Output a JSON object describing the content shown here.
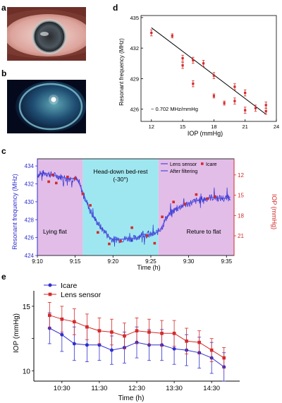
{
  "panels": {
    "a": "a",
    "b": "b",
    "c": "c",
    "d": "d",
    "e": "e"
  },
  "colors": {
    "red": "#d42a2a",
    "blue": "#2f2fd0",
    "black": "#000000",
    "lying_bg": "#e2bde8",
    "bedrest_bg": "#9fe7f0",
    "fit_line": "#000000"
  },
  "chart_data": [
    {
      "id": "d",
      "type": "scatter",
      "xlabel": "IOP (mmHg)",
      "ylabel": "Resonant frequency (MHz)",
      "annotation": "− 0.702 MHz/mmHg",
      "xlim": [
        11,
        24
      ],
      "ylim": [
        424.8,
        435.2
      ],
      "xticks": [
        12,
        15,
        18,
        21,
        24
      ],
      "yticks": [
        426,
        429,
        432,
        435
      ],
      "points": [
        {
          "x": 12,
          "y": 433.5,
          "err": 0.3
        },
        {
          "x": 14,
          "y": 433.2,
          "err": 0.2
        },
        {
          "x": 15,
          "y": 431.0,
          "err": 0.3
        },
        {
          "x": 15,
          "y": 430.3,
          "err": 0.3
        },
        {
          "x": 16,
          "y": 430.8,
          "err": 0.3
        },
        {
          "x": 16,
          "y": 428.5,
          "err": 0.3
        },
        {
          "x": 17,
          "y": 430.5,
          "err": 0.3
        },
        {
          "x": 18,
          "y": 429.3,
          "err": 0.3
        },
        {
          "x": 18,
          "y": 427.3,
          "err": 0.2
        },
        {
          "x": 19,
          "y": 426.6,
          "err": 0.2
        },
        {
          "x": 20,
          "y": 428.2,
          "err": 0.3
        },
        {
          "x": 20,
          "y": 426.8,
          "err": 0.3
        },
        {
          "x": 21,
          "y": 427.6,
          "err": 0.3
        },
        {
          "x": 21,
          "y": 425.9,
          "err": 0.3
        },
        {
          "x": 22,
          "y": 426.1,
          "err": 0.3
        },
        {
          "x": 23,
          "y": 426.4,
          "err": 0.3
        },
        {
          "x": 23,
          "y": 425.8,
          "err": 0.3
        }
      ],
      "fit": {
        "x": [
          12,
          23
        ],
        "y": [
          434.0,
          425.5
        ]
      }
    },
    {
      "id": "c",
      "type": "line",
      "xlabel": "Time (h)",
      "ylabel": "Resonant frequency (MHz)",
      "y2label": "IOP (mmHg)",
      "xlim": [
        9.1667,
        9.6
      ],
      "xticks": [
        9.1667,
        9.25,
        9.3333,
        9.4167,
        9.5,
        9.5833
      ],
      "xticklabels": [
        "9:10",
        "9:15",
        "9:20",
        "9:25",
        "9:30",
        "9:35"
      ],
      "ylim": [
        424,
        434.8
      ],
      "yticks": [
        424,
        426,
        428,
        430,
        432,
        434
      ],
      "y2ticks": [
        12,
        15,
        18,
        21
      ],
      "y2_mapping": {
        "iop_a": 12,
        "freq_a": 433,
        "iop_b": 21,
        "freq_b": 426.2
      },
      "regions": [
        {
          "label": "Lying flat",
          "start": 9.1667,
          "end": 9.2667,
          "kind": "lying"
        },
        {
          "label": "Head-down bed-rest",
          "sublabel": "(-30°)",
          "start": 9.2667,
          "end": 9.4333,
          "kind": "bedrest"
        },
        {
          "label": "Reture to flat",
          "start": 9.4333,
          "end": 9.6,
          "kind": "lying"
        }
      ],
      "legend": [
        "Lens sensor",
        "Icare",
        "After filtering"
      ],
      "series": [
        {
          "name": "Lens sensor",
          "x": [
            9.1667,
            9.1833,
            9.2,
            9.2167,
            9.2333,
            9.25,
            9.2583,
            9.2667,
            9.275,
            9.2833,
            9.2917,
            9.3,
            9.3083,
            9.3167,
            9.325,
            9.3333,
            9.35,
            9.3667,
            9.3833,
            9.3917,
            9.4,
            9.4083,
            9.4167,
            9.425,
            9.4333,
            9.4417,
            9.45,
            9.4667,
            9.4833,
            9.5,
            9.5167,
            9.5333,
            9.55,
            9.5667,
            9.5833,
            9.5917
          ],
          "y": [
            433.0,
            433.2,
            433.0,
            432.8,
            432.6,
            432.6,
            432.2,
            431.0,
            430.0,
            429.0,
            428.2,
            427.6,
            427.0,
            426.6,
            426.0,
            425.8,
            425.8,
            425.9,
            425.9,
            426.2,
            426.4,
            426.3,
            426.3,
            426.4,
            426.7,
            427.2,
            428.2,
            429.0,
            429.5,
            429.8,
            430.1,
            430.3,
            430.5,
            430.4,
            430.4,
            430.5
          ],
          "noise": 0.8
        }
      ],
      "icare_iop": [
        {
          "x": 9.1917,
          "iop": 13.0
        },
        {
          "x": 9.2,
          "iop": 12.0
        },
        {
          "x": 9.2083,
          "iop": 13.2
        },
        {
          "x": 9.2333,
          "iop": 12.3
        },
        {
          "x": 9.25,
          "iop": 12.5
        },
        {
          "x": 9.2667,
          "iop": 14.8
        },
        {
          "x": 9.2833,
          "iop": 16.5
        },
        {
          "x": 9.3,
          "iop": 20.5
        },
        {
          "x": 9.325,
          "iop": 22.2
        },
        {
          "x": 9.35,
          "iop": 21.8
        },
        {
          "x": 9.375,
          "iop": 19.8
        },
        {
          "x": 9.4083,
          "iop": 21.0
        },
        {
          "x": 9.425,
          "iop": 22.1
        },
        {
          "x": 9.4417,
          "iop": 18.2
        },
        {
          "x": 9.4667,
          "iop": 16.0
        },
        {
          "x": 9.4917,
          "iop": 16.3
        },
        {
          "x": 9.5167,
          "iop": 14.9
        },
        {
          "x": 9.5417,
          "iop": 15.5
        },
        {
          "x": 9.5583,
          "iop": 15.2
        }
      ]
    },
    {
      "id": "e",
      "type": "line",
      "xlabel": "Time (h)",
      "ylabel": "IOP (mmHg)",
      "xlim": [
        9.75,
        15.25
      ],
      "xticks": [
        10.5,
        11.5,
        12.5,
        13.5,
        14.5
      ],
      "xticklabels": [
        "10:30",
        "11:30",
        "12:30",
        "13:30",
        "14:30"
      ],
      "ylim": [
        9.2,
        16.2
      ],
      "yticks": [
        10,
        12.5,
        15
      ],
      "yticklabels": [
        "10",
        "",
        "15"
      ],
      "legend_position": "top-left",
      "series": [
        {
          "name": "Icare",
          "x": [
            10.17,
            10.5,
            10.83,
            11.17,
            11.5,
            11.83,
            12.17,
            12.5,
            12.83,
            13.17,
            13.5,
            13.83,
            14.17,
            14.5,
            14.83
          ],
          "values": [
            13.3,
            12.8,
            12.1,
            12.0,
            12.0,
            11.6,
            11.8,
            12.2,
            12.0,
            12.0,
            11.7,
            11.6,
            11.4,
            11.0,
            10.3
          ],
          "err": [
            1.2,
            1.3,
            1.3,
            1.3,
            1.2,
            1.1,
            1.2,
            1.2,
            1.2,
            1.2,
            1.2,
            1.2,
            1.2,
            1.2,
            1.1
          ]
        },
        {
          "name": "Lens sensor",
          "x": [
            10.17,
            10.5,
            10.83,
            11.17,
            11.5,
            11.83,
            12.17,
            12.5,
            12.83,
            13.17,
            13.5,
            13.83,
            14.17,
            14.5,
            14.83
          ],
          "values": [
            14.3,
            14.0,
            13.8,
            13.4,
            13.1,
            13.0,
            12.7,
            13.1,
            13.0,
            12.9,
            12.9,
            12.3,
            12.2,
            11.6,
            11.0
          ],
          "err": [
            1.0,
            1.0,
            1.0,
            1.0,
            1.0,
            1.0,
            1.0,
            1.0,
            1.0,
            1.0,
            1.0,
            1.0,
            0.9,
            0.9,
            0.8
          ]
        }
      ]
    }
  ]
}
